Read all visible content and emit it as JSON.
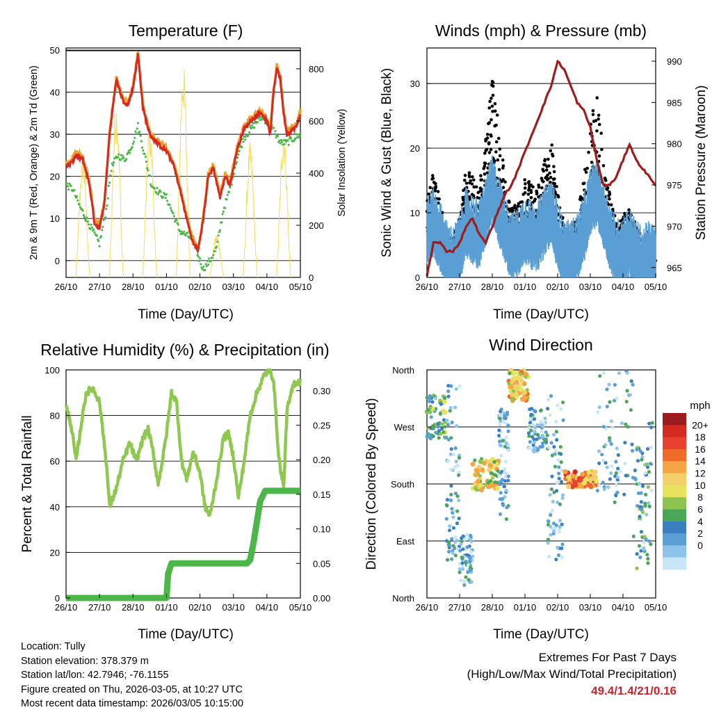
{
  "colors": {
    "temp_2m": "#d42a22",
    "temp_9m": "#f0a030",
    "dewpoint": "#4cb748",
    "solar": "#f2dc5a",
    "wind": "#5a9fd4",
    "gust": "#000000",
    "pressure": "#a01c1c",
    "rh": "#8ec850",
    "rain": "#4cb748"
  },
  "chart_data": [
    {
      "type": "line",
      "title": "Temperature (F)",
      "xlabel": "Time (Day/UTC)",
      "ylabel": "2m & 9m T (Red, Orange) & 2m Td (Green)",
      "y2label": "Solar Insolation (Yellow)",
      "x_ticks": [
        "26/10",
        "27/10",
        "28/10",
        "01/10",
        "02/10",
        "03/10",
        "04/10",
        "05/10"
      ],
      "ylim": [
        -4,
        50.5
      ],
      "yticks": [
        0,
        10,
        20,
        30,
        40,
        50
      ],
      "y2lim": [
        0,
        880
      ],
      "y2ticks": [
        0,
        200,
        400,
        600,
        800
      ],
      "series": [
        {
          "name": "2m T",
          "color_key": "temp_2m",
          "x": [
            0,
            0.05,
            0.15,
            0.3,
            0.5,
            0.7,
            0.85,
            1.0,
            1.15,
            1.3,
            1.5,
            1.7,
            1.85,
            2.0,
            2.15,
            2.3,
            2.5,
            2.7,
            2.85,
            3.0,
            3.2,
            3.4,
            3.6,
            3.8,
            3.95,
            4.1,
            4.25,
            4.4,
            4.6,
            4.75,
            4.9,
            5.1,
            5.3,
            5.5,
            5.7,
            5.85,
            6.0,
            6.1,
            6.2,
            6.3,
            6.4,
            6.5,
            6.6,
            6.75,
            6.9,
            7.0
          ],
          "values": [
            23,
            22.5,
            23,
            25,
            24,
            18,
            9,
            7.5,
            14,
            30,
            43,
            38,
            37,
            41,
            49,
            36,
            30,
            28,
            27,
            26,
            23,
            17,
            10,
            4,
            2.5,
            10,
            20,
            22,
            15,
            20,
            18,
            26,
            31,
            33,
            34.5,
            35,
            33,
            30,
            40,
            46,
            43,
            35,
            30,
            31,
            32,
            35
          ]
        },
        {
          "name": "Td",
          "color_key": "dewpoint",
          "x": [
            0,
            0.2,
            0.4,
            0.6,
            0.8,
            1.0,
            1.2,
            1.35,
            1.55,
            1.75,
            1.95,
            2.15,
            2.35,
            2.55,
            2.8,
            3.0,
            3.2,
            3.4,
            3.6,
            3.8,
            3.95,
            4.1,
            4.3,
            4.5,
            4.7,
            4.9,
            5.1,
            5.3,
            5.5,
            5.7,
            5.85,
            6.0,
            6.2,
            6.4,
            6.6,
            6.8,
            7.0
          ],
          "values": [
            18,
            17,
            13,
            10,
            7,
            4,
            12,
            22,
            25,
            24,
            27,
            32,
            25,
            18,
            16,
            15,
            11,
            7,
            6,
            5,
            1,
            -2,
            0,
            3,
            12,
            17,
            24,
            29,
            31,
            33,
            34,
            33,
            31,
            28,
            28,
            29,
            30
          ]
        }
      ],
      "solar_peaks": [
        {
          "day": 0.5,
          "peak": 480
        },
        {
          "day": 1.5,
          "peak": 690
        },
        {
          "day": 2.5,
          "peak": 610
        },
        {
          "day": 3.5,
          "peak": 840
        },
        {
          "day": 4.5,
          "peak": 170
        },
        {
          "day": 5.5,
          "peak": 520
        },
        {
          "day": 6.5,
          "peak": 580
        }
      ]
    },
    {
      "type": "scatter",
      "title": "Winds (mph) & Pressure (mb)",
      "xlabel": "Time (Day/UTC)",
      "ylabel": "Sonic Wind & Gust (Blue, Black)",
      "y2label": "Station Pressure (Maroon)",
      "x_ticks": [
        "26/10",
        "27/10",
        "28/10",
        "01/10",
        "02/10",
        "03/10",
        "04/10",
        "05/10"
      ],
      "ylim": [
        0,
        35.5
      ],
      "yticks": [
        0,
        10,
        20,
        30
      ],
      "y2lim": [
        963.8,
        991.6
      ],
      "y2ticks": [
        965,
        970,
        975,
        980,
        985,
        990
      ],
      "wind_profile": {
        "x": [
          0,
          0.2,
          0.4,
          0.6,
          0.8,
          1.0,
          1.2,
          1.4,
          1.6,
          1.8,
          2.0,
          2.2,
          2.4,
          2.6,
          2.8,
          3.0,
          3.2,
          3.4,
          3.6,
          3.8,
          4.0,
          4.2,
          4.4,
          4.6,
          4.8,
          5.0,
          5.2,
          5.4,
          5.6,
          5.8,
          6.0,
          6.2,
          6.4,
          6.6,
          6.8,
          7.0
        ],
        "values": [
          7,
          8,
          6,
          3,
          2,
          4,
          8,
          7,
          6,
          10,
          13,
          10,
          7,
          4,
          5,
          7,
          6,
          6,
          8,
          10,
          6,
          3,
          3,
          4,
          7,
          11,
          13,
          9,
          6,
          3,
          4,
          5,
          3,
          2,
          3,
          2
        ]
      },
      "gust_profile": {
        "x": [
          0,
          0.2,
          0.4,
          0.6,
          0.8,
          1.0,
          1.2,
          1.4,
          1.6,
          1.8,
          2.0,
          2.2,
          2.4,
          2.6,
          2.8,
          3.0,
          3.2,
          3.4,
          3.6,
          3.8,
          4.0,
          4.2,
          4.4,
          4.6,
          4.8,
          5.0,
          5.2,
          5.4,
          5.6,
          5.8,
          6.0,
          6.2,
          6.4,
          6.6,
          6.8,
          7.0
        ],
        "values": [
          12,
          14,
          10,
          6,
          5,
          8,
          14,
          13,
          12,
          18,
          26,
          20,
          14,
          9,
          10,
          13,
          12,
          12,
          15,
          18,
          11,
          7,
          6,
          8,
          13,
          20,
          24,
          16,
          11,
          7,
          8,
          9,
          7,
          5,
          6,
          4
        ]
      },
      "pressure": {
        "x": [
          0,
          0.2,
          0.4,
          0.6,
          0.8,
          1.0,
          1.2,
          1.4,
          1.6,
          1.8,
          2.0,
          2.2,
          2.4,
          2.6,
          2.8,
          3.0,
          3.2,
          3.4,
          3.6,
          3.8,
          4.0,
          4.2,
          4.4,
          4.6,
          4.8,
          5.0,
          5.2,
          5.4,
          5.6,
          5.8,
          6.0,
          6.2,
          6.4,
          6.6,
          6.8,
          7.0
        ],
        "values": [
          964,
          968,
          968,
          967,
          967,
          968,
          970,
          971,
          969,
          968,
          970,
          972,
          974,
          975,
          977,
          979,
          981,
          983,
          985,
          987,
          990,
          989,
          987,
          985,
          984,
          982,
          978,
          975,
          975,
          976,
          978,
          980,
          978,
          977,
          976,
          975
        ]
      }
    },
    {
      "type": "line",
      "title": "Relative Humidity (%) & Precipitation (in)",
      "xlabel": "Time (Day/UTC)",
      "ylabel": "Percent & Total Rainfall",
      "x_ticks": [
        "26/10",
        "27/10",
        "28/10",
        "01/10",
        "02/10",
        "03/10",
        "04/10",
        "05/10"
      ],
      "ylim": [
        0,
        100
      ],
      "yticks": [
        0,
        20,
        40,
        60,
        80,
        100
      ],
      "y2lim": [
        0,
        0.33
      ],
      "y2ticks": [
        "0.00",
        "0.05",
        "0.10",
        "0.15",
        "0.20",
        "0.25",
        "0.30"
      ],
      "series": [
        {
          "name": "Relative Humidity",
          "color_key": "rh",
          "x": [
            0,
            0.15,
            0.3,
            0.45,
            0.6,
            0.8,
            1.0,
            1.2,
            1.3,
            1.5,
            1.7,
            1.9,
            2.1,
            2.3,
            2.45,
            2.6,
            2.75,
            2.9,
            3.0,
            3.15,
            3.3,
            3.45,
            3.6,
            3.8,
            4.0,
            4.15,
            4.3,
            4.5,
            4.7,
            4.85,
            5.0,
            5.15,
            5.3,
            5.5,
            5.7,
            5.9,
            6.05,
            6.2,
            6.35,
            6.5,
            6.6,
            6.8,
            7.0
          ],
          "values": [
            84,
            76,
            60,
            76,
            90,
            92,
            86,
            60,
            40,
            48,
            60,
            68,
            60,
            70,
            74,
            64,
            50,
            62,
            72,
            90,
            86,
            60,
            52,
            64,
            55,
            40,
            36,
            52,
            70,
            72,
            62,
            44,
            58,
            80,
            90,
            97,
            100,
            96,
            62,
            48,
            82,
            94,
            95
          ]
        },
        {
          "name": "Total Rainfall",
          "color_key": "rain",
          "x": [
            0,
            3.0,
            3.05,
            3.15,
            3.25,
            5.4,
            5.5,
            5.6,
            5.7,
            5.8,
            5.95,
            7.0
          ],
          "values": [
            0,
            0,
            0.035,
            0.05,
            0.05,
            0.05,
            0.055,
            0.08,
            0.11,
            0.14,
            0.155,
            0.155
          ]
        }
      ]
    },
    {
      "type": "scatter",
      "title": "Wind Direction",
      "xlabel": "Time (Day/UTC)",
      "ylabel": "Direction (Colored By Speed)",
      "x_ticks": [
        "26/10",
        "27/10",
        "28/10",
        "01/10",
        "02/10",
        "03/10",
        "04/10",
        "05/10"
      ],
      "y_ticks": [
        "North",
        "East",
        "South",
        "West",
        "North"
      ],
      "ylim": [
        0,
        360
      ],
      "colorbar_title": "mph",
      "colorbar_labels": [
        "20+",
        "18",
        "16",
        "14",
        "12",
        "10",
        "8",
        "6",
        "4",
        "2",
        "0"
      ],
      "colorbar_colors": [
        "#9b1a1d",
        "#d42a22",
        "#e8422e",
        "#f06a2a",
        "#f6a545",
        "#f3d06a",
        "#e8e35c",
        "#8cc44f",
        "#4aa75a",
        "#3a7fbf",
        "#5a9fd4",
        "#8ec3ea",
        "#c8e6f7"
      ],
      "clusters": [
        {
          "day0": 0.0,
          "day1": 0.6,
          "dir0": 250,
          "dir1": 320,
          "speed": 6
        },
        {
          "day0": 0.6,
          "day1": 1.0,
          "dir0": 60,
          "dir1": 340,
          "speed": 3
        },
        {
          "day0": 1.0,
          "day1": 1.4,
          "dir0": 20,
          "dir1": 100,
          "speed": 3
        },
        {
          "day0": 1.4,
          "day1": 2.2,
          "dir0": 170,
          "dir1": 220,
          "speed": 10
        },
        {
          "day0": 2.2,
          "day1": 2.5,
          "dir0": 120,
          "dir1": 300,
          "speed": 3
        },
        {
          "day0": 2.5,
          "day1": 3.1,
          "dir0": 310,
          "dir1": 360,
          "speed": 11
        },
        {
          "day0": 3.1,
          "day1": 3.7,
          "dir0": 230,
          "dir1": 300,
          "speed": 4
        },
        {
          "day0": 3.7,
          "day1": 4.2,
          "dir0": 60,
          "dir1": 320,
          "speed": 3
        },
        {
          "day0": 4.2,
          "day1": 5.2,
          "dir0": 175,
          "dir1": 200,
          "speed": 14
        },
        {
          "day0": 5.2,
          "day1": 6.3,
          "dir0": 150,
          "dir1": 360,
          "speed": 3
        },
        {
          "day0": 6.3,
          "day1": 6.9,
          "dir0": 40,
          "dir1": 280,
          "speed": 4
        }
      ]
    }
  ],
  "footer": {
    "location": "Location: Tully",
    "elevation": "Station elevation: 378.379 m",
    "latlon": "Station lat/lon: 42.7946; -76.1155",
    "created": "Figure created on Thu, 2026-03-05, at 10:27 UTC",
    "recent": "Most recent data timestamp: 2026/03/05 10:15:00"
  },
  "extremes": {
    "title": "Extremes For Past 7 Days",
    "subtitle": "(High/Low/Max Wind/Total Precipitation)",
    "values": "49.4/1.4/21/0.16"
  }
}
